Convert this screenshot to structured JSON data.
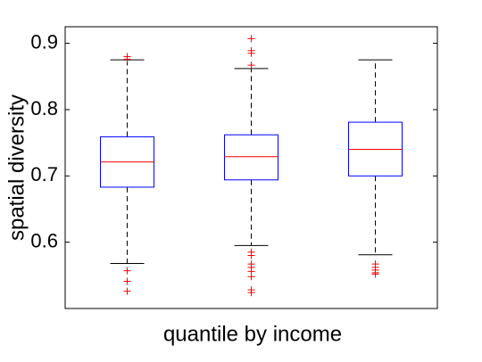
{
  "chart_data": {
    "type": "box",
    "xlabel": "quantile by income",
    "ylabel": "spatial diversity",
    "categories": [
      null,
      null,
      null
    ],
    "ylim": [
      0.5,
      0.925
    ],
    "yticks": [
      0.6,
      0.7,
      0.8,
      0.9
    ],
    "box_color": "#0000ff",
    "median_color": "#ff0000",
    "whisker_color": "#000000",
    "outlier_color": "#ff0000",
    "boxes": [
      {
        "whisker_low": 0.568,
        "q1": 0.683,
        "median": 0.721,
        "q3": 0.759,
        "whisker_high": 0.875,
        "outliers": [
          0.88,
          0.876,
          0.557,
          0.541,
          0.526
        ]
      },
      {
        "whisker_low": 0.595,
        "q1": 0.694,
        "median": 0.729,
        "q3": 0.762,
        "whisker_high": 0.862,
        "outliers": [
          0.907,
          0.889,
          0.885,
          0.867,
          0.585,
          0.58,
          0.567,
          0.562,
          0.556,
          0.548,
          0.528,
          0.524
        ]
      },
      {
        "whisker_low": 0.581,
        "q1": 0.7,
        "median": 0.74,
        "q3": 0.781,
        "whisker_high": 0.875,
        "outliers": [
          0.567,
          0.562,
          0.558,
          0.554,
          0.552
        ]
      }
    ]
  }
}
